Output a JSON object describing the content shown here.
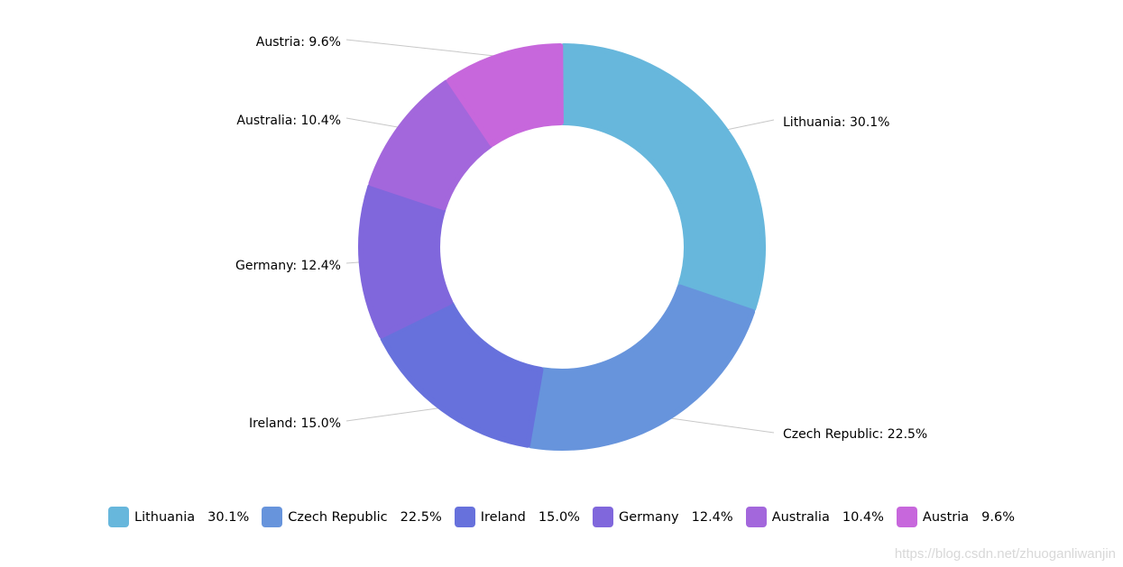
{
  "chart_data": {
    "type": "pie",
    "subtype": "donut",
    "title": "",
    "categories": [
      "Lithuania",
      "Czech Republic",
      "Ireland",
      "Germany",
      "Australia",
      "Austria"
    ],
    "values": [
      30.1,
      22.5,
      15.0,
      12.4,
      10.4,
      9.6
    ],
    "unit": "%",
    "colors": [
      "#67b7dc",
      "#6794dc",
      "#6771dc",
      "#8067dc",
      "#a367dc",
      "#c767dc"
    ],
    "slice_labels": [
      "Lithuania: 30.1%",
      "Czech Republic: 22.5%",
      "Ireland: 15.0%",
      "Germany: 12.4%",
      "Australia: 10.4%",
      "Austria: 9.6%"
    ],
    "legend_position": "bottom",
    "legend": [
      {
        "name": "Lithuania",
        "value": "30.1%"
      },
      {
        "name": "Czech Republic",
        "value": "22.5%"
      },
      {
        "name": "Ireland",
        "value": "15.0%"
      },
      {
        "name": "Germany",
        "value": "12.4%"
      },
      {
        "name": "Australia",
        "value": "10.4%"
      },
      {
        "name": "Austria",
        "value": "9.6%"
      }
    ]
  },
  "watermark": "https://blog.csdn.net/zhuoganliwanjin"
}
